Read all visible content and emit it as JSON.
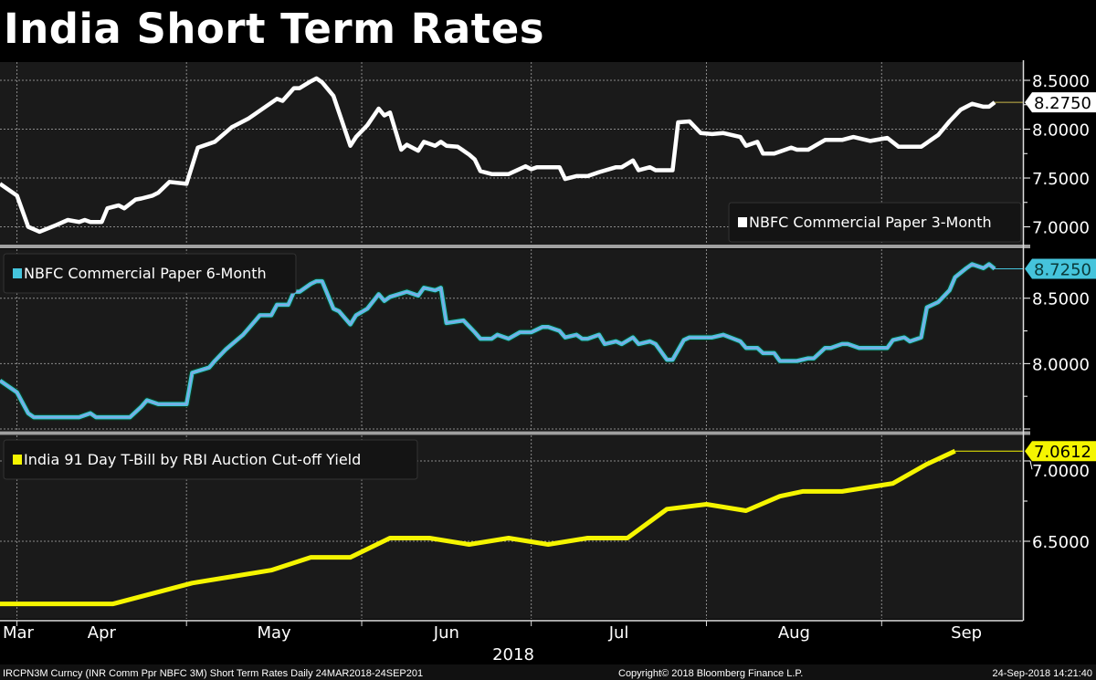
{
  "title": "India Short Term Rates",
  "colors": {
    "background": "#000000",
    "plot": "#1a1a1a",
    "grid": "#8a8a8a"
  },
  "chart_data": [
    {
      "type": "line",
      "legend": "NBFC Commercial Paper 3-Month",
      "legend_position": "bottom-right",
      "color": "#ffffff",
      "last_value_label": "8.2750",
      "ylim": [
        6.818,
        8.687
      ],
      "yticks": [
        8.5,
        8.0,
        7.5,
        7.0
      ],
      "ytick_labels": [
        "8.5000",
        "8.0000",
        "7.5000",
        "7.0000"
      ],
      "series": [
        {
          "points": [
            [
              "2018-03-29",
              7.44
            ],
            [
              "2018-04-01",
              7.32
            ],
            [
              "2018-04-03",
              7.0
            ],
            [
              "2018-04-05",
              6.95
            ],
            [
              "2018-04-08",
              7.02
            ],
            [
              "2018-04-10",
              7.07
            ],
            [
              "2018-04-12",
              7.05
            ],
            [
              "2018-04-13",
              7.07
            ],
            [
              "2018-04-14",
              7.05
            ],
            [
              "2018-04-16",
              7.05
            ],
            [
              "2018-04-17",
              7.19
            ],
            [
              "2018-04-19",
              7.22
            ],
            [
              "2018-04-20",
              7.19
            ],
            [
              "2018-04-22",
              7.28
            ],
            [
              "2018-04-23",
              7.29
            ],
            [
              "2018-04-25",
              7.32
            ],
            [
              "2018-04-26",
              7.35
            ],
            [
              "2018-04-28",
              7.46
            ],
            [
              "2018-05-01",
              7.44
            ],
            [
              "2018-05-03",
              7.81
            ],
            [
              "2018-05-06",
              7.87
            ],
            [
              "2018-05-09",
              8.02
            ],
            [
              "2018-05-12",
              8.11
            ],
            [
              "2018-05-14",
              8.19
            ],
            [
              "2018-05-17",
              8.31
            ],
            [
              "2018-05-18",
              8.29
            ],
            [
              "2018-05-20",
              8.42
            ],
            [
              "2018-05-21",
              8.42
            ],
            [
              "2018-05-23",
              8.49
            ],
            [
              "2018-05-24",
              8.52
            ],
            [
              "2018-05-25",
              8.48
            ],
            [
              "2018-05-27",
              8.34
            ],
            [
              "2018-05-30",
              7.83
            ],
            [
              "2018-05-31",
              7.92
            ],
            [
              "2018-06-02",
              8.04
            ],
            [
              "2018-06-04",
              8.21
            ],
            [
              "2018-06-05",
              8.14
            ],
            [
              "2018-06-06",
              8.17
            ],
            [
              "2018-06-08",
              7.79
            ],
            [
              "2018-06-09",
              7.84
            ],
            [
              "2018-06-11",
              7.78
            ],
            [
              "2018-06-12",
              7.87
            ],
            [
              "2018-06-14",
              7.83
            ],
            [
              "2018-06-15",
              7.87
            ],
            [
              "2018-06-16",
              7.83
            ],
            [
              "2018-06-18",
              7.82
            ],
            [
              "2018-06-20",
              7.74
            ],
            [
              "2018-06-21",
              7.69
            ],
            [
              "2018-06-22",
              7.57
            ],
            [
              "2018-06-24",
              7.54
            ],
            [
              "2018-06-27",
              7.54
            ],
            [
              "2018-06-30",
              7.62
            ],
            [
              "2018-07-01",
              7.59
            ],
            [
              "2018-07-02",
              7.61
            ],
            [
              "2018-07-06",
              7.61
            ],
            [
              "2018-07-07",
              7.49
            ],
            [
              "2018-07-09",
              7.52
            ],
            [
              "2018-07-11",
              7.52
            ],
            [
              "2018-07-13",
              7.56
            ],
            [
              "2018-07-16",
              7.61
            ],
            [
              "2018-07-17",
              7.61
            ],
            [
              "2018-07-19",
              7.68
            ],
            [
              "2018-07-20",
              7.58
            ],
            [
              "2018-07-22",
              7.61
            ],
            [
              "2018-07-23",
              7.58
            ],
            [
              "2018-07-26",
              7.58
            ],
            [
              "2018-07-27",
              8.07
            ],
            [
              "2018-07-29",
              8.08
            ],
            [
              "2018-07-31",
              7.96
            ],
            [
              "2018-08-02",
              7.95
            ],
            [
              "2018-08-04",
              7.96
            ],
            [
              "2018-08-07",
              7.92
            ],
            [
              "2018-08-08",
              7.83
            ],
            [
              "2018-08-10",
              7.87
            ],
            [
              "2018-08-11",
              7.75
            ],
            [
              "2018-08-13",
              7.75
            ],
            [
              "2018-08-16",
              7.81
            ],
            [
              "2018-08-17",
              7.79
            ],
            [
              "2018-08-19",
              7.79
            ],
            [
              "2018-08-22",
              7.89
            ],
            [
              "2018-08-25",
              7.89
            ],
            [
              "2018-08-27",
              7.92
            ],
            [
              "2018-08-30",
              7.88
            ],
            [
              "2018-09-02",
              7.91
            ],
            [
              "2018-09-04",
              7.82
            ],
            [
              "2018-09-08",
              7.82
            ],
            [
              "2018-09-11",
              7.94
            ],
            [
              "2018-09-13",
              8.08
            ],
            [
              "2018-09-15",
              8.2
            ],
            [
              "2018-09-17",
              8.26
            ],
            [
              "2018-09-19",
              8.23
            ],
            [
              "2018-09-20",
              8.23
            ],
            [
              "2018-09-21",
              8.275
            ]
          ]
        }
      ]
    },
    {
      "type": "line",
      "legend": "NBFC Commercial Paper 6-Month",
      "legend_position": "top-left",
      "color": "#45c4dc",
      "last_value_label": "8.7250",
      "ylim": [
        7.486,
        8.875
      ],
      "yticks": [
        8.5,
        8.0,
        7.5
      ],
      "ytick_labels": [
        "8.5000",
        "8.0000",
        ""
      ],
      "series": [
        {
          "points": [
            [
              "2018-03-29",
              7.87
            ],
            [
              "2018-04-01",
              7.78
            ],
            [
              "2018-04-03",
              7.62
            ],
            [
              "2018-04-04",
              7.59
            ],
            [
              "2018-04-12",
              7.59
            ],
            [
              "2018-04-14",
              7.62
            ],
            [
              "2018-04-15",
              7.59
            ],
            [
              "2018-04-21",
              7.59
            ],
            [
              "2018-04-23",
              7.67
            ],
            [
              "2018-04-24",
              7.72
            ],
            [
              "2018-04-26",
              7.69
            ],
            [
              "2018-05-01",
              7.69
            ],
            [
              "2018-05-02",
              7.93
            ],
            [
              "2018-05-05",
              7.97
            ],
            [
              "2018-05-06",
              8.02
            ],
            [
              "2018-05-08",
              8.11
            ],
            [
              "2018-05-11",
              8.22
            ],
            [
              "2018-05-12",
              8.27
            ],
            [
              "2018-05-14",
              8.37
            ],
            [
              "2018-05-16",
              8.37
            ],
            [
              "2018-05-17",
              8.45
            ],
            [
              "2018-05-19",
              8.45
            ],
            [
              "2018-05-20",
              8.55
            ],
            [
              "2018-05-21",
              8.55
            ],
            [
              "2018-05-23",
              8.61
            ],
            [
              "2018-05-24",
              8.63
            ],
            [
              "2018-05-25",
              8.63
            ],
            [
              "2018-05-27",
              8.42
            ],
            [
              "2018-05-28",
              8.4
            ],
            [
              "2018-05-30",
              8.3
            ],
            [
              "2018-05-31",
              8.37
            ],
            [
              "2018-06-02",
              8.42
            ],
            [
              "2018-06-04",
              8.53
            ],
            [
              "2018-06-05",
              8.48
            ],
            [
              "2018-06-06",
              8.51
            ],
            [
              "2018-06-09",
              8.55
            ],
            [
              "2018-06-11",
              8.52
            ],
            [
              "2018-06-12",
              8.58
            ],
            [
              "2018-06-14",
              8.56
            ],
            [
              "2018-06-15",
              8.58
            ],
            [
              "2018-06-16",
              8.31
            ],
            [
              "2018-06-19",
              8.33
            ],
            [
              "2018-06-21",
              8.24
            ],
            [
              "2018-06-22",
              8.19
            ],
            [
              "2018-06-24",
              8.19
            ],
            [
              "2018-06-25",
              8.22
            ],
            [
              "2018-06-27",
              8.19
            ],
            [
              "2018-06-29",
              8.24
            ],
            [
              "2018-07-01",
              8.24
            ],
            [
              "2018-07-03",
              8.28
            ],
            [
              "2018-07-04",
              8.28
            ],
            [
              "2018-07-06",
              8.25
            ],
            [
              "2018-07-07",
              8.2
            ],
            [
              "2018-07-09",
              8.22
            ],
            [
              "2018-07-10",
              8.19
            ],
            [
              "2018-07-11",
              8.19
            ],
            [
              "2018-07-13",
              8.22
            ],
            [
              "2018-07-14",
              8.15
            ],
            [
              "2018-07-16",
              8.17
            ],
            [
              "2018-07-17",
              8.15
            ],
            [
              "2018-07-19",
              8.2
            ],
            [
              "2018-07-20",
              8.15
            ],
            [
              "2018-07-22",
              8.17
            ],
            [
              "2018-07-23",
              8.15
            ],
            [
              "2018-07-25",
              8.03
            ],
            [
              "2018-07-26",
              8.03
            ],
            [
              "2018-07-28",
              8.18
            ],
            [
              "2018-07-29",
              8.2
            ],
            [
              "2018-08-02",
              8.2
            ],
            [
              "2018-08-04",
              8.22
            ],
            [
              "2018-08-07",
              8.17
            ],
            [
              "2018-08-08",
              8.12
            ],
            [
              "2018-08-10",
              8.12
            ],
            [
              "2018-08-11",
              8.08
            ],
            [
              "2018-08-13",
              8.08
            ],
            [
              "2018-08-14",
              8.02
            ],
            [
              "2018-08-17",
              8.02
            ],
            [
              "2018-08-19",
              8.04
            ],
            [
              "2018-08-20",
              8.04
            ],
            [
              "2018-08-22",
              8.12
            ],
            [
              "2018-08-23",
              8.12
            ],
            [
              "2018-08-25",
              8.15
            ],
            [
              "2018-08-26",
              8.15
            ],
            [
              "2018-08-28",
              8.12
            ],
            [
              "2018-09-02",
              8.12
            ],
            [
              "2018-09-03",
              8.18
            ],
            [
              "2018-09-05",
              8.2
            ],
            [
              "2018-09-06",
              8.17
            ],
            [
              "2018-09-08",
              8.2
            ],
            [
              "2018-09-09",
              8.43
            ],
            [
              "2018-09-11",
              8.47
            ],
            [
              "2018-09-13",
              8.56
            ],
            [
              "2018-09-14",
              8.66
            ],
            [
              "2018-09-16",
              8.73
            ],
            [
              "2018-09-17",
              8.76
            ],
            [
              "2018-09-19",
              8.73
            ],
            [
              "2018-09-20",
              8.76
            ],
            [
              "2018-09-21",
              8.725
            ]
          ]
        }
      ]
    },
    {
      "type": "line",
      "legend": "India 91 Day T-Bill by RBI Auction Cut-off Yield",
      "legend_position": "top-left",
      "color": "#f5f500",
      "last_value_label": "7.0612",
      "ylim": [
        6.017,
        7.159
      ],
      "yticks": [
        7.0,
        6.5
      ],
      "ytick_labels": [
        "7.0000",
        "6.5000"
      ],
      "series": [
        {
          "points": [
            [
              "2018-03-28",
              6.11
            ],
            [
              "2018-04-18",
              6.11
            ],
            [
              "2018-05-02",
              6.24
            ],
            [
              "2018-05-16",
              6.32
            ],
            [
              "2018-05-23",
              6.4
            ],
            [
              "2018-05-30",
              6.4
            ],
            [
              "2018-06-06",
              6.52
            ],
            [
              "2018-06-13",
              6.52
            ],
            [
              "2018-06-20",
              6.48
            ],
            [
              "2018-06-27",
              6.52
            ],
            [
              "2018-07-04",
              6.48
            ],
            [
              "2018-07-11",
              6.52
            ],
            [
              "2018-07-18",
              6.52
            ],
            [
              "2018-07-25",
              6.7
            ],
            [
              "2018-08-01",
              6.73
            ],
            [
              "2018-08-08",
              6.69
            ],
            [
              "2018-08-14",
              6.78
            ],
            [
              "2018-08-18",
              6.81
            ],
            [
              "2018-08-25",
              6.81
            ],
            [
              "2018-09-03",
              6.86
            ],
            [
              "2018-09-09",
              6.98
            ],
            [
              "2018-09-14",
              7.0612
            ]
          ]
        }
      ]
    }
  ],
  "x_axis": {
    "xlim": [
      "2018-03-29",
      "2018-09-26"
    ],
    "months": [
      {
        "label": "Mar",
        "start": "2018-03-01"
      },
      {
        "label": "Apr",
        "start": "2018-04-01"
      },
      {
        "label": "May",
        "start": "2018-05-01"
      },
      {
        "label": "Jun",
        "start": "2018-06-01"
      },
      {
        "label": "Jul",
        "start": "2018-07-01"
      },
      {
        "label": "Aug",
        "start": "2018-08-01"
      },
      {
        "label": "Sep",
        "start": "2018-09-01"
      }
    ],
    "year_label": "2018"
  },
  "footer": {
    "left": "IRCPN3M Curncy (INR Comm Ppr NBFC 3M) Short Term Rates  Daily 24MAR2018-24SEP201",
    "center": "Copyright© 2018 Bloomberg Finance L.P.",
    "right": "24-Sep-2018 14:21:40"
  }
}
